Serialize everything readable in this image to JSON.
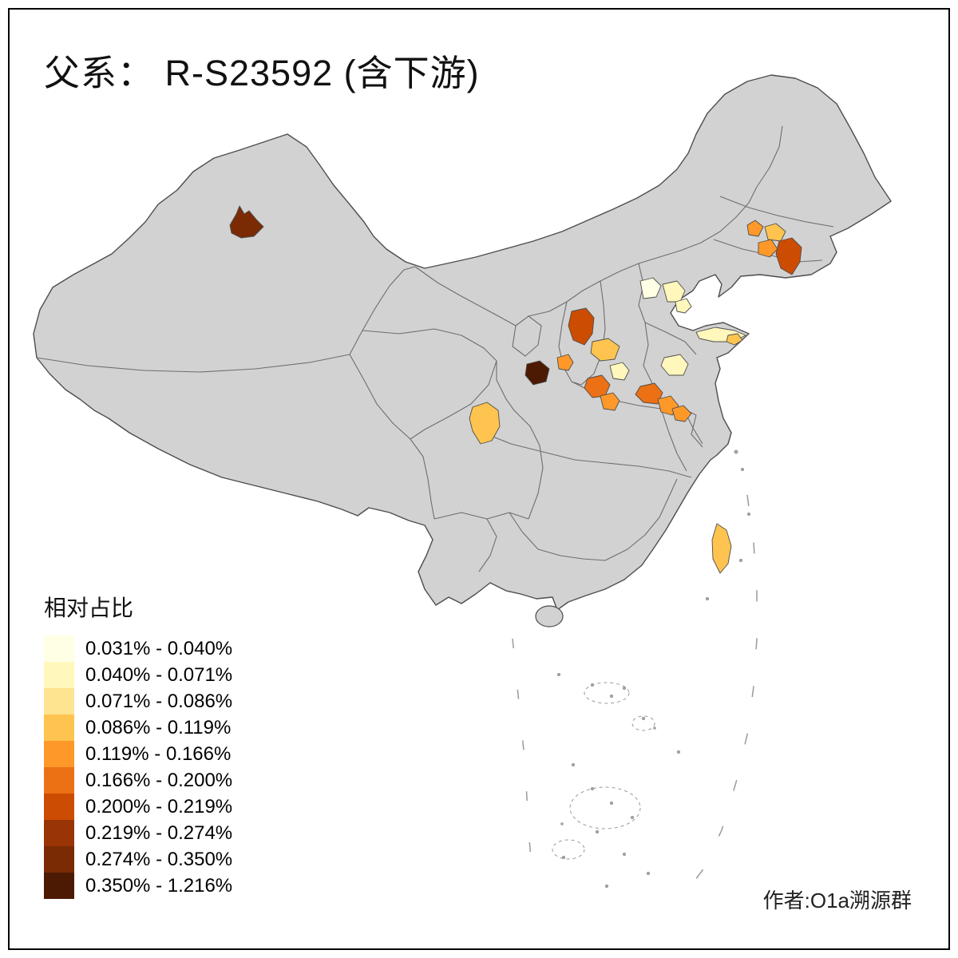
{
  "title": "父系： R-S23592 (含下游)",
  "attribution": "作者:O1a溯源群",
  "legend": {
    "title": "相对占比",
    "classes": [
      {
        "label": "0.031% - 0.040%",
        "color": "#FFFFE5"
      },
      {
        "label": "0.040% - 0.071%",
        "color": "#FFF7BC"
      },
      {
        "label": "0.071% - 0.086%",
        "color": "#FEE391"
      },
      {
        "label": "0.086% - 0.119%",
        "color": "#FEC44F"
      },
      {
        "label": "0.119% - 0.166%",
        "color": "#FE9929"
      },
      {
        "label": "0.166% - 0.200%",
        "color": "#EC7014"
      },
      {
        "label": "0.200% - 0.219%",
        "color": "#CC4C02"
      },
      {
        "label": "0.219% - 0.274%",
        "color": "#993404"
      },
      {
        "label": "0.274% - 0.350%",
        "color": "#7A2B04"
      },
      {
        "label": "0.350% - 1.216%",
        "color": "#4C1A03"
      }
    ]
  },
  "map": {
    "base_fill": "#D2D2D2",
    "border_color": "#4D4D4D",
    "inner_border_color": "#6E6E6E",
    "sea_mark_color": "#9A9A9A",
    "regions": [
      {
        "id": "xinjiang-patch",
        "class_index": 8
      },
      {
        "id": "northeast-1",
        "class_index": 4
      },
      {
        "id": "northeast-2",
        "class_index": 3
      },
      {
        "id": "northeast-3",
        "class_index": 4
      },
      {
        "id": "northeast-4",
        "class_index": 6
      },
      {
        "id": "beijing-west",
        "class_index": 0
      },
      {
        "id": "beijing-east",
        "class_index": 1
      },
      {
        "id": "tianjin",
        "class_index": 1
      },
      {
        "id": "shanxi",
        "class_index": 6
      },
      {
        "id": "gansu-east-small",
        "class_index": 4
      },
      {
        "id": "center-darkest",
        "class_index": 9
      },
      {
        "id": "shaanxi-north",
        "class_index": 3
      },
      {
        "id": "shaanxi-pale",
        "class_index": 1
      },
      {
        "id": "shaanxi-south",
        "class_index": 5
      },
      {
        "id": "henan-west",
        "class_index": 4
      },
      {
        "id": "shandong-tip",
        "class_index": 1
      },
      {
        "id": "shandong-tip-dot",
        "class_index": 3
      },
      {
        "id": "shandong-central",
        "class_index": 1
      },
      {
        "id": "henan-mid",
        "class_index": 5
      },
      {
        "id": "henan-east",
        "class_index": 4
      },
      {
        "id": "anhui-north",
        "class_index": 4
      },
      {
        "id": "sichuan",
        "class_index": 3
      },
      {
        "id": "taiwan",
        "class_index": 3
      }
    ]
  }
}
